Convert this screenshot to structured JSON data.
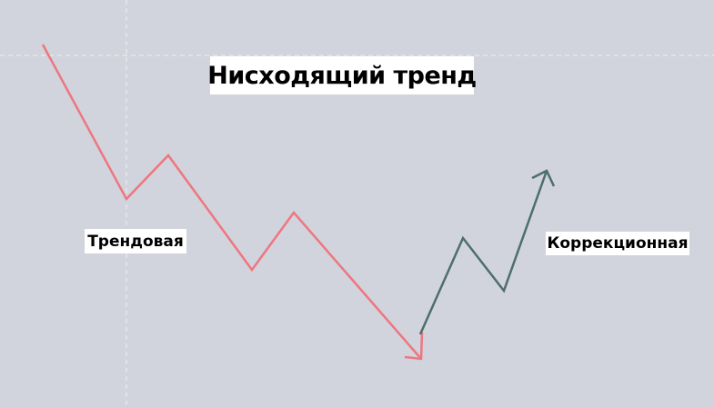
{
  "title": "Нисходящий тренд",
  "labels": {
    "trend": "Трендовая",
    "correction": "Коррекционная"
  },
  "colors": {
    "background": "#d1d4dc",
    "trend_line": "#ee7680",
    "correction_line": "#4e6e6e",
    "crosshair": "#ffffff"
  }
}
